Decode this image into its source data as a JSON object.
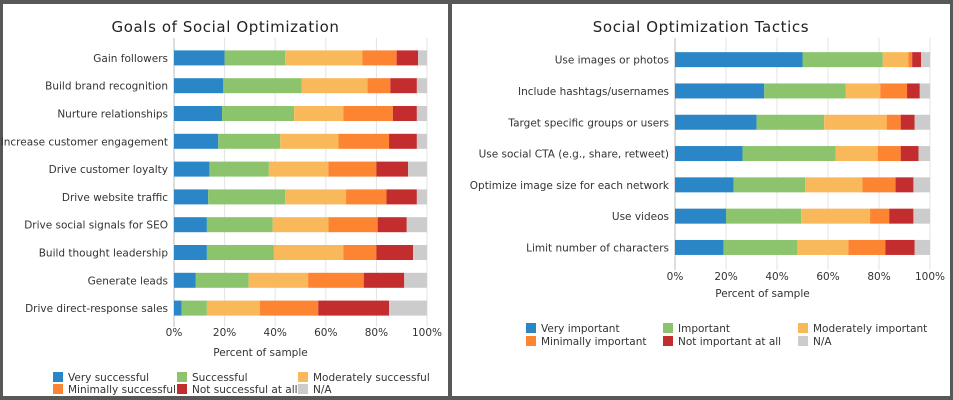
{
  "chart_data": [
    {
      "type": "bar",
      "orientation": "horizontal",
      "stacked": true,
      "title": "Goals of Social Optimization",
      "xlabel": "Percent of sample",
      "ylabel": "",
      "xlim": [
        0,
        100
      ],
      "x_ticks": [
        "0%",
        "20%",
        "40%",
        "60%",
        "80%",
        "100%"
      ],
      "grid": true,
      "legend_position": "bottom",
      "categories": [
        "Gain followers",
        "Build brand recognition",
        "Nurture relationships",
        "Increase customer engagement",
        "Drive customer loyalty",
        "Drive website traffic",
        "Drive social signals for SEO",
        "Build thought leadership",
        "Generate leads",
        "Drive direct-response sales"
      ],
      "series": [
        {
          "name": "Very successful",
          "color": "#2a86c6",
          "values": [
            20,
            19.5,
            19,
            17.5,
            14,
            13.5,
            13,
            13,
            8.5,
            3
          ]
        },
        {
          "name": "Successful",
          "color": "#8bc46c",
          "values": [
            24,
            31,
            28.5,
            24.5,
            23.5,
            30.5,
            26,
            26.5,
            21,
            10
          ]
        },
        {
          "name": "Moderately successful",
          "color": "#f9b95a",
          "values": [
            30.5,
            26,
            19.5,
            23,
            23.5,
            24,
            22,
            27.5,
            23.5,
            21
          ]
        },
        {
          "name": "Minimally successful",
          "color": "#fd8431",
          "values": [
            13.5,
            9,
            19.5,
            20,
            19,
            16,
            19.5,
            13,
            22,
            23
          ]
        },
        {
          "name": "Not successful at all",
          "color": "#c32d2d",
          "values": [
            8.5,
            10.5,
            9.5,
            11,
            12.5,
            12,
            11.5,
            14.5,
            16,
            28
          ]
        },
        {
          "name": "N/A",
          "color": "#cccccc",
          "values": [
            3.5,
            4,
            4,
            4,
            7.5,
            4,
            8,
            5.5,
            9,
            15
          ]
        }
      ]
    },
    {
      "type": "bar",
      "orientation": "horizontal",
      "stacked": true,
      "title": "Social Optimization Tactics",
      "xlabel": "Percent of sample",
      "ylabel": "",
      "xlim": [
        0,
        100
      ],
      "x_ticks": [
        "0%",
        "20%",
        "40%",
        "60%",
        "80%",
        "100%"
      ],
      "grid": true,
      "legend_position": "bottom",
      "categories": [
        "Use images or photos",
        "Include hashtags/usernames",
        "Target specific groups or users",
        "Use social CTA (e.g., share, retweet)",
        "Optimize image size for each network",
        "Use videos",
        "Limit number of characters"
      ],
      "series": [
        {
          "name": "Very important",
          "color": "#2a86c6",
          "values": [
            50,
            35,
            32,
            26.5,
            23,
            20,
            19
          ]
        },
        {
          "name": "Important",
          "color": "#8bc46c",
          "values": [
            31.5,
            32,
            26.5,
            36.5,
            28,
            29.5,
            29
          ]
        },
        {
          "name": "Moderately important",
          "color": "#f9b95a",
          "values": [
            10,
            13.5,
            24.5,
            16.5,
            22.5,
            27,
            20
          ]
        },
        {
          "name": "Minimally important",
          "color": "#fd8431",
          "values": [
            1.5,
            10.5,
            5.5,
            9,
            13,
            7.5,
            14.5
          ]
        },
        {
          "name": "Not important at all",
          "color": "#c32d2d",
          "values": [
            3.5,
            5,
            5.5,
            7,
            7,
            9.5,
            11.5
          ]
        },
        {
          "name": "N/A",
          "color": "#cccccc",
          "values": [
            3.5,
            4,
            6,
            4.5,
            6.5,
            6.5,
            6
          ]
        }
      ]
    }
  ]
}
